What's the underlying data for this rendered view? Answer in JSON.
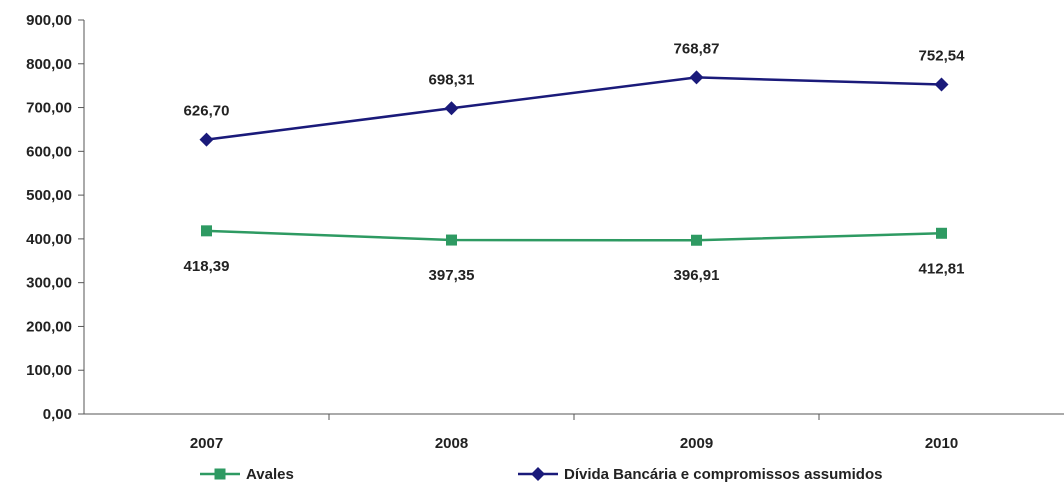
{
  "chart_data": {
    "type": "line",
    "categories": [
      "2007",
      "2008",
      "2009",
      "2010"
    ],
    "series": [
      {
        "name": "Avales",
        "values": [
          418.39,
          397.35,
          396.91,
          412.81
        ],
        "labels": [
          "418,39",
          "397,35",
          "396,91",
          "412,81"
        ],
        "color": "#2e9a62",
        "marker": "square"
      },
      {
        "name": "Dívida Bancária e compromissos assumidos",
        "values": [
          626.7,
          698.31,
          768.87,
          752.54
        ],
        "labels": [
          "626,70",
          "698,31",
          "768,87",
          "752,54"
        ],
        "color": "#1a1a7a",
        "marker": "diamond"
      }
    ],
    "y_ticks": [
      "0,00",
      "100,00",
      "200,00",
      "300,00",
      "400,00",
      "500,00",
      "600,00",
      "700,00",
      "800,00",
      "900,00"
    ],
    "ylim": [
      0,
      900
    ],
    "grid": false,
    "legend_position": "bottom",
    "title": "",
    "xlabel": "",
    "ylabel": ""
  }
}
